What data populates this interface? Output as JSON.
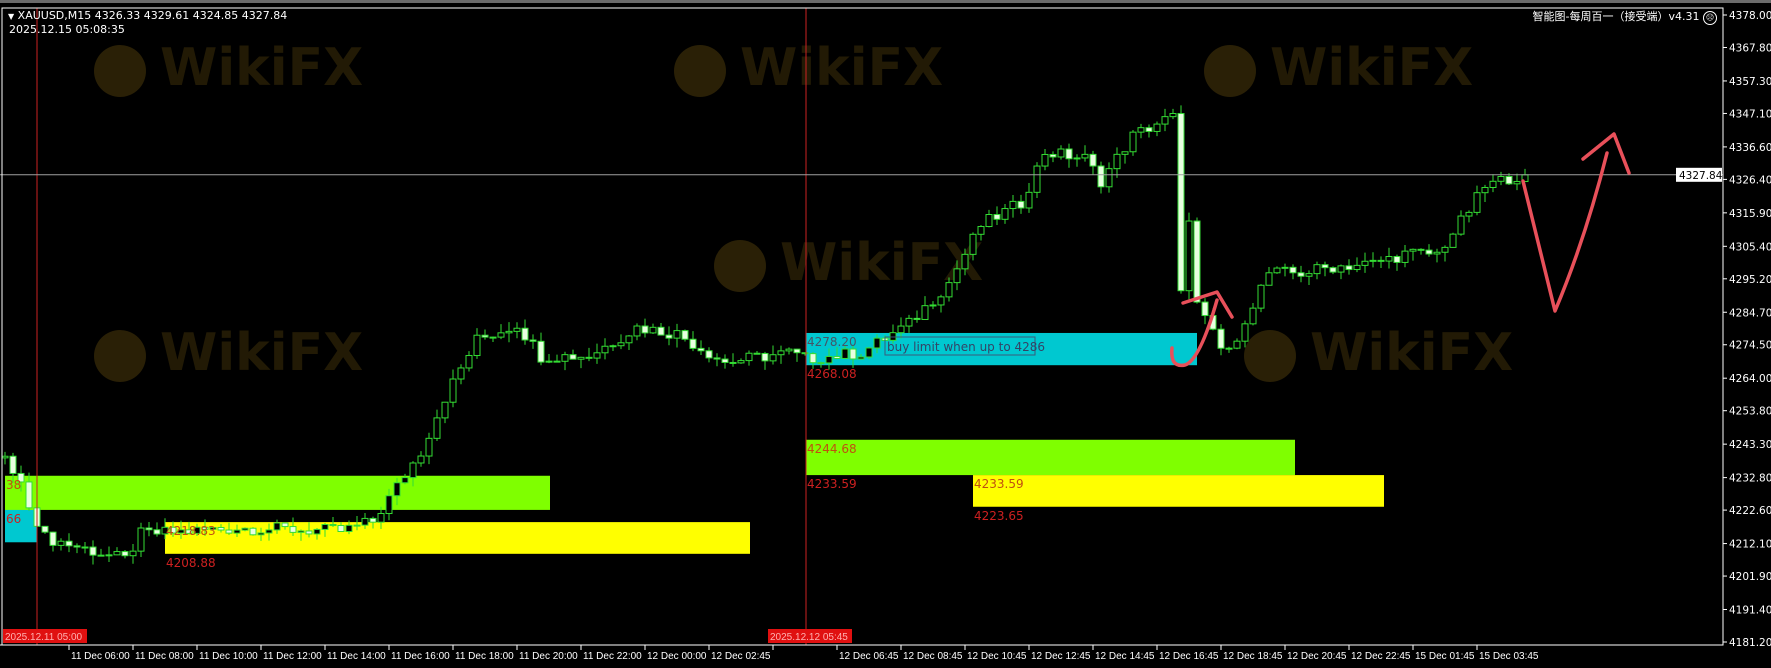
{
  "header": {
    "symbol_line": "XAUUSD,M15  4326.33 4329.61 4324.85 4327.84",
    "datetime": "2025.12.15 05:08:35",
    "indicator_title": "智能图-每周百一（接受端）v4.31",
    "indicator_icon": "sad-face-icon"
  },
  "colors": {
    "background": "#000000",
    "bull_body": "#000000",
    "bear_body": "#e8ffe0",
    "wick": "#33dd33",
    "zone_cyan": "#00c8d0",
    "zone_green": "#7fff00",
    "zone_yellow": "#ffff00",
    "zone_label": "#cc2020",
    "annotation": "#e8505a",
    "session_line": "#cc2222",
    "current_price_line": "#a0a0a0"
  },
  "watermark": "WikiFX",
  "chart_data": {
    "type": "candlestick",
    "symbol": "XAUUSD",
    "timeframe": "M15",
    "ylim": [
      4181.2,
      4378.0
    ],
    "current_price": "4327.84",
    "price_ticks": [
      "4378.00",
      "4367.80",
      "4357.30",
      "4347.10",
      "4336.60",
      "4326.40",
      "4315.90",
      "4305.40",
      "4295.20",
      "4284.70",
      "4274.50",
      "4264.00",
      "4253.80",
      "4243.30",
      "4232.80",
      "4222.60",
      "4212.10",
      "4201.90",
      "4191.40",
      "4181.20"
    ],
    "time_ticks": [
      "11 Dec 06:00",
      "11 Dec 08:00",
      "11 Dec 10:00",
      "11 Dec 12:00",
      "11 Dec 14:00",
      "11 Dec 16:00",
      "11 Dec 18:00",
      "11 Dec 20:00",
      "11 Dec 22:00",
      "12 Dec 00:00",
      "12 Dec 02:45",
      "",
      "12 Dec 06:45",
      "12 Dec 08:45",
      "12 Dec 10:45",
      "12 Dec 12:45",
      "12 Dec 14:45",
      "12 Dec 16:45",
      "12 Dec 18:45",
      "12 Dec 20:45",
      "12 Dec 22:45",
      "15 Dec 01:45",
      "15 Dec 03:45"
    ],
    "session_markers": [
      "2025.12.11 05:00",
      "2025.12.12 05:45"
    ],
    "close_path_bar_price": [
      [
        -4,
        4239
      ],
      [
        -1,
        4225
      ],
      [
        1,
        4214
      ],
      [
        11,
        4207
      ],
      [
        13,
        4215
      ],
      [
        25,
        4217
      ],
      [
        38,
        4216
      ],
      [
        42,
        4219
      ],
      [
        45,
        4230
      ],
      [
        48,
        4241
      ],
      [
        51,
        4258
      ],
      [
        55,
        4276
      ],
      [
        60,
        4281
      ],
      [
        63,
        4271
      ],
      [
        69,
        4271
      ],
      [
        75,
        4280
      ],
      [
        80,
        4278
      ],
      [
        86,
        4269
      ],
      [
        94,
        4272
      ],
      [
        96,
        4270
      ],
      [
        103,
        4272
      ],
      [
        109,
        4281
      ],
      [
        114,
        4294
      ],
      [
        118,
        4312
      ],
      [
        123,
        4319
      ],
      [
        126,
        4335
      ],
      [
        131,
        4333
      ],
      [
        133,
        4326
      ],
      [
        137,
        4340
      ],
      [
        140,
        4344
      ],
      [
        142,
        4346
      ],
      [
        143,
        4290
      ],
      [
        144,
        4315
      ],
      [
        145,
        4287
      ],
      [
        148,
        4273
      ],
      [
        150,
        4274
      ],
      [
        151,
        4283
      ],
      [
        154,
        4297
      ],
      [
        158,
        4297
      ],
      [
        162,
        4299
      ],
      [
        167,
        4300
      ],
      [
        171,
        4303
      ],
      [
        175,
        4303
      ],
      [
        178,
        4313
      ],
      [
        181,
        4324
      ],
      [
        184,
        4327
      ],
      [
        186,
        4327.84
      ]
    ],
    "zones": [
      {
        "name": "zone-cyan-left",
        "color": "cyan",
        "top": 4225.0,
        "bottom": 4212.5,
        "top_label": "",
        "bottom_label": ""
      },
      {
        "name": "zone-green-left",
        "color": "green",
        "top": 4233.38,
        "bottom": 4222.66,
        "top_label": "38",
        "bottom_label": "66"
      },
      {
        "name": "zone-yellow-left",
        "color": "yellow",
        "top": 4218.83,
        "bottom": 4208.88,
        "top_label": "4218.83",
        "bottom_label": "4208.88"
      },
      {
        "name": "zone-cyan-right",
        "color": "cyan",
        "top": 4278.2,
        "bottom": 4268.08,
        "top_label": "4278.20",
        "bottom_label": "4268.08"
      },
      {
        "name": "zone-green-right",
        "color": "green",
        "top": 4244.68,
        "bottom": 4233.59,
        "top_label": "4244.68",
        "bottom_label": "4233.59"
      },
      {
        "name": "zone-yellow-right",
        "color": "yellow",
        "top": 4233.59,
        "bottom": 4223.65,
        "top_label": "4233.59",
        "bottom_label": "4223.65"
      }
    ],
    "annotation_text": "buy limit when up to 4286"
  }
}
